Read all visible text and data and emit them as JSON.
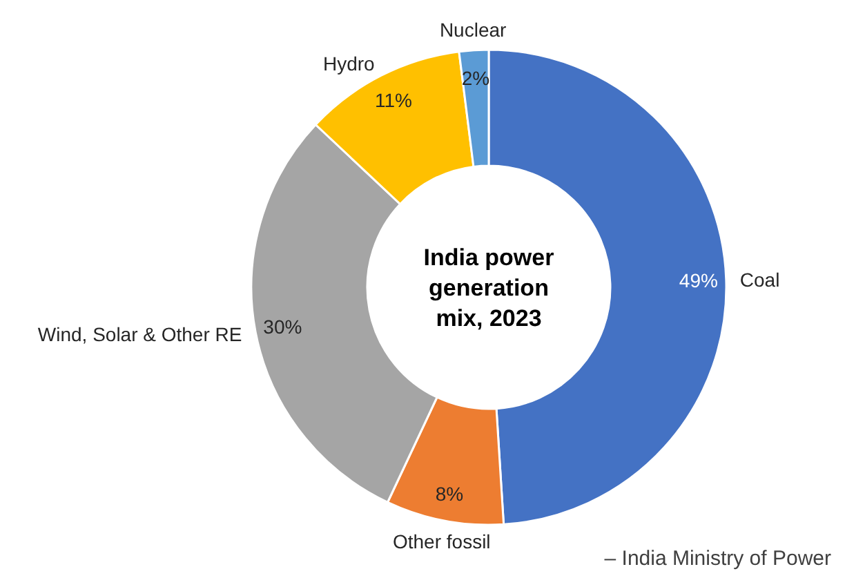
{
  "chart_data": {
    "type": "donut",
    "title": "India power generation mix, 2023",
    "categories": [
      "Coal",
      "Other fossil",
      "Wind, Solar & Other RE",
      "Hydro",
      "Nuclear"
    ],
    "values": [
      49,
      8,
      30,
      11,
      2
    ],
    "colors": [
      "#4472c4",
      "#ed7d31",
      "#a5a5a5",
      "#ffc000",
      "#5b9bd5"
    ],
    "value_labels": [
      "49%",
      "8%",
      "30%",
      "11%",
      "2%"
    ],
    "annotations": [
      "– India Ministry of Power"
    ]
  }
}
